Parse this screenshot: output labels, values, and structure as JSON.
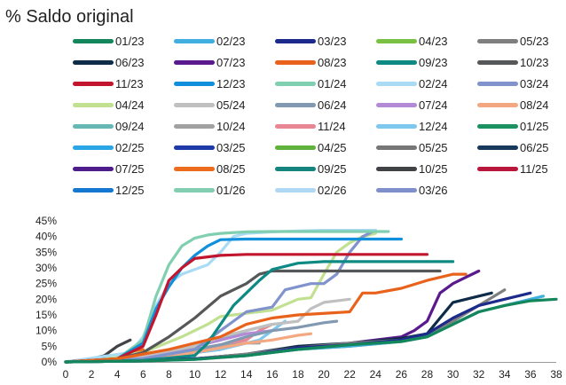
{
  "chart_data": {
    "type": "line",
    "title": "% Saldo original",
    "xlabel": "",
    "ylabel": "",
    "xlim": [
      0,
      38
    ],
    "ylim": [
      0,
      45
    ],
    "y_unit": "%",
    "x_ticks": [
      0,
      2,
      4,
      6,
      8,
      10,
      12,
      14,
      16,
      18,
      20,
      22,
      24,
      26,
      28,
      30,
      32,
      34,
      36,
      38
    ],
    "y_ticks": [
      "0%",
      "5%",
      "10%",
      "15%",
      "20%",
      "25%",
      "30%",
      "35%",
      "40%",
      "45%"
    ],
    "y_tick_values": [
      0,
      5,
      10,
      15,
      20,
      25,
      30,
      35,
      40,
      45
    ],
    "grid": false,
    "legend_position": "top",
    "series": [
      {
        "name": "01/23",
        "color": "#14865b",
        "x": [
          0,
          6,
          10,
          14,
          18,
          22,
          26,
          28,
          30,
          32,
          34,
          36,
          38
        ],
        "y": [
          0,
          0.3,
          0.8,
          2,
          4,
          5.5,
          6.5,
          8,
          12,
          16,
          18,
          19.5,
          20
        ]
      },
      {
        "name": "02/23",
        "color": "#41aee0",
        "x": [
          0,
          6,
          10,
          14,
          18,
          22,
          26,
          28,
          30,
          32,
          34,
          36,
          37
        ],
        "y": [
          0,
          0.3,
          0.8,
          2,
          4,
          5,
          6.5,
          8,
          12,
          16,
          18,
          20,
          21
        ]
      },
      {
        "name": "03/23",
        "color": "#1c2a8c",
        "x": [
          0,
          6,
          10,
          14,
          18,
          22,
          26,
          28,
          30,
          32,
          34,
          36
        ],
        "y": [
          0,
          0.3,
          1,
          2,
          4.5,
          5.5,
          7,
          9,
          14,
          18,
          20,
          22
        ]
      },
      {
        "name": "04/23",
        "color": "#7ac143",
        "x": [
          0,
          6,
          10,
          14,
          18,
          22,
          26,
          28,
          30,
          32,
          34,
          35
        ],
        "y": [
          0,
          0.3,
          1,
          2,
          4,
          5,
          6.5,
          8,
          12,
          16,
          18,
          19
        ]
      },
      {
        "name": "05/23",
        "color": "#7f7f7f",
        "x": [
          0,
          6,
          10,
          14,
          18,
          22,
          26,
          28,
          30,
          32,
          34
        ],
        "y": [
          0,
          0.3,
          1,
          2.5,
          4.5,
          6,
          7,
          9,
          13,
          18,
          23
        ]
      },
      {
        "name": "06/23",
        "color": "#0e2b48",
        "x": [
          0,
          6,
          10,
          14,
          18,
          22,
          26,
          28,
          29,
          30,
          32,
          33
        ],
        "y": [
          0,
          0.3,
          1,
          2.5,
          5,
          6,
          7.5,
          9,
          14,
          19,
          21,
          22
        ]
      },
      {
        "name": "07/23",
        "color": "#5a1a8e",
        "x": [
          0,
          6,
          10,
          14,
          18,
          22,
          26,
          27,
          28,
          29,
          30,
          31,
          32
        ],
        "y": [
          0,
          0.3,
          1,
          2,
          4.5,
          6,
          8,
          10,
          13,
          22,
          25,
          27,
          29
        ]
      },
      {
        "name": "08/23",
        "color": "#e8621c",
        "x": [
          0,
          4,
          8,
          12,
          14,
          16,
          18,
          22,
          23,
          24,
          26,
          28,
          30,
          31
        ],
        "y": [
          0,
          1,
          4,
          8,
          12,
          14,
          15,
          16,
          22,
          22,
          23.5,
          26,
          28,
          28
        ]
      },
      {
        "name": "09/23",
        "color": "#0d8a84",
        "x": [
          0,
          6,
          10,
          11,
          12,
          13,
          14,
          15,
          16,
          18,
          20,
          24,
          28,
          30
        ],
        "y": [
          0,
          0.5,
          2,
          6,
          12,
          18,
          22,
          26,
          29.5,
          31.5,
          32,
          32,
          32,
          32
        ]
      },
      {
        "name": "10/23",
        "color": "#555759",
        "x": [
          0,
          4,
          6,
          8,
          10,
          12,
          14,
          15,
          16,
          18,
          20,
          24,
          28,
          29
        ],
        "y": [
          0,
          1,
          3,
          8,
          14,
          21,
          25,
          28,
          29,
          29,
          29,
          29,
          29,
          29
        ]
      },
      {
        "name": "11/23",
        "color": "#c1162d",
        "x": [
          0,
          4,
          6,
          7,
          8,
          9,
          10,
          12,
          14,
          16,
          20,
          24,
          26,
          28
        ],
        "y": [
          0,
          1,
          5,
          15,
          26,
          30,
          33,
          34,
          34.3,
          34.3,
          34.3,
          34.3,
          34.3,
          34.3
        ]
      },
      {
        "name": "12/23",
        "color": "#0f8fdc",
        "x": [
          0,
          4,
          6,
          7,
          8,
          9,
          10,
          11,
          12,
          14,
          16,
          20,
          24,
          26
        ],
        "y": [
          0,
          1,
          6,
          17,
          24,
          30,
          34,
          37,
          39,
          39.2,
          39.2,
          39.2,
          39.2,
          39.2
        ]
      },
      {
        "name": "01/24",
        "color": "#80cfb0",
        "x": [
          0,
          4,
          6,
          7,
          8,
          9,
          10,
          11,
          12,
          14,
          16,
          20,
          24,
          25
        ],
        "y": [
          0,
          1,
          7,
          21,
          31,
          37,
          39.5,
          40.5,
          41,
          41.5,
          41.6,
          41.6,
          41.6,
          41.6
        ]
      },
      {
        "name": "02/24",
        "color": "#a9dbf4",
        "x": [
          0,
          5,
          6,
          7,
          8,
          9,
          10,
          11,
          12,
          13,
          14,
          16,
          18,
          20,
          23,
          24
        ],
        "y": [
          0,
          3,
          8,
          18,
          25,
          28,
          29.5,
          31,
          35,
          40,
          41,
          41.5,
          41.8,
          42,
          42,
          42
        ]
      },
      {
        "name": "03/24",
        "color": "#8193cc",
        "x": [
          0,
          6,
          10,
          12,
          14,
          16,
          17,
          18,
          19,
          20,
          21,
          22,
          23,
          24
        ],
        "y": [
          0,
          1,
          4,
          10,
          16,
          17.5,
          23,
          24,
          25,
          25,
          28,
          35,
          40,
          42
        ]
      },
      {
        "name": "04/24",
        "color": "#c1e090",
        "x": [
          0,
          6,
          9,
          11,
          12,
          14,
          16,
          18,
          19,
          20,
          21,
          22,
          23,
          24
        ],
        "y": [
          0,
          3,
          8,
          12,
          14.5,
          15.5,
          16.5,
          20,
          20.5,
          28,
          35,
          38,
          40,
          41
        ]
      },
      {
        "name": "05/24",
        "color": "#c0c0c0",
        "x": [
          0,
          6,
          10,
          12,
          14,
          16,
          18,
          19,
          20,
          22
        ],
        "y": [
          0,
          2,
          5,
          8,
          10,
          12,
          13,
          17,
          19,
          20
        ]
      },
      {
        "name": "06/24",
        "color": "#8299b2",
        "x": [
          0,
          6,
          10,
          12,
          14,
          16,
          18,
          20,
          21
        ],
        "y": [
          0,
          1,
          4,
          5.5,
          8,
          10,
          11,
          12.5,
          13
        ]
      },
      {
        "name": "07/24",
        "color": "#b48ad6",
        "x": [
          0,
          6,
          10,
          12,
          14,
          16
        ],
        "y": [
          0,
          1.5,
          5,
          7,
          9,
          10
        ]
      },
      {
        "name": "08/24",
        "color": "#f3a882",
        "x": [
          0,
          6,
          10,
          14,
          16,
          18,
          19
        ],
        "y": [
          0,
          1,
          3,
          6,
          7,
          8.5,
          9
        ]
      },
      {
        "name": "09/24",
        "color": "#67b8b5",
        "x": [
          0,
          4,
          8,
          12,
          14,
          16
        ],
        "y": [
          0,
          1,
          3,
          7,
          10,
          12
        ]
      },
      {
        "name": "10/24",
        "color": "#a1a1a1",
        "x": [
          0,
          4,
          8,
          12,
          14,
          15
        ],
        "y": [
          0,
          0.5,
          2,
          5,
          6,
          6
        ]
      },
      {
        "name": "11/24",
        "color": "#e98693",
        "x": [
          0,
          6,
          10,
          14,
          15,
          16
        ],
        "y": [
          0,
          1,
          4,
          7,
          10,
          12
        ]
      },
      {
        "name": "12/24",
        "color": "#7ec7ee",
        "x": [
          0,
          4,
          8,
          12,
          15,
          16,
          17
        ],
        "y": [
          0,
          0.5,
          2,
          4,
          7,
          10,
          13
        ]
      },
      {
        "name": "01/25",
        "color": "#1b9260",
        "x": [
          0,
          4,
          8,
          10,
          13
        ],
        "y": [
          0,
          1,
          2,
          3,
          6
        ]
      },
      {
        "name": "02/25",
        "color": "#2aa5e6",
        "x": [
          0,
          4,
          8,
          12
        ],
        "y": [
          0,
          1,
          3,
          7
        ]
      },
      {
        "name": "03/25",
        "color": "#1d3aa8",
        "x": [
          0,
          4,
          8,
          12
        ],
        "y": [
          0,
          0.5,
          2,
          4
        ]
      },
      {
        "name": "04/25",
        "color": "#5fb33c",
        "x": [
          0,
          4,
          8,
          10
        ],
        "y": [
          0,
          0.5,
          2,
          3
        ]
      },
      {
        "name": "05/25",
        "color": "#767676",
        "x": [
          0,
          4,
          6,
          8
        ],
        "y": [
          0,
          0.5,
          1.5,
          3
        ]
      },
      {
        "name": "06/25",
        "color": "#173a5c",
        "x": [
          0,
          4,
          6,
          9
        ],
        "y": [
          0,
          0.5,
          2,
          4
        ]
      },
      {
        "name": "07/25",
        "color": "#4f1d8b",
        "x": [
          0,
          4,
          6,
          8
        ],
        "y": [
          0,
          1,
          2,
          2
        ]
      },
      {
        "name": "08/25",
        "color": "#ed6b1c",
        "x": [
          0,
          4,
          6
        ],
        "y": [
          0,
          2,
          4
        ]
      },
      {
        "name": "09/25",
        "color": "#16847e",
        "x": [
          0,
          3,
          5
        ],
        "y": [
          0,
          1,
          2
        ]
      },
      {
        "name": "10/25",
        "color": "#404245",
        "x": [
          0,
          2,
          3,
          4,
          5
        ],
        "y": [
          0,
          1,
          2,
          5,
          7
        ]
      },
      {
        "name": "11/25",
        "color": "#b8163a",
        "x": [
          0,
          2,
          4
        ],
        "y": [
          0,
          1,
          2
        ]
      },
      {
        "name": "12/25",
        "color": "#1478d2",
        "x": [
          0,
          2,
          3
        ],
        "y": [
          0,
          0.5,
          1
        ]
      },
      {
        "name": "01/26",
        "color": "#83cdb0",
        "x": [
          0,
          1,
          2
        ],
        "y": [
          0,
          0.5,
          1
        ]
      },
      {
        "name": "02/26",
        "color": "#aed8f3",
        "x": [
          0,
          1
        ],
        "y": [
          0,
          0.3
        ]
      },
      {
        "name": "03/26",
        "color": "#7f8fcb",
        "x": [
          0,
          1
        ],
        "y": [
          0,
          0.2
        ]
      }
    ]
  }
}
